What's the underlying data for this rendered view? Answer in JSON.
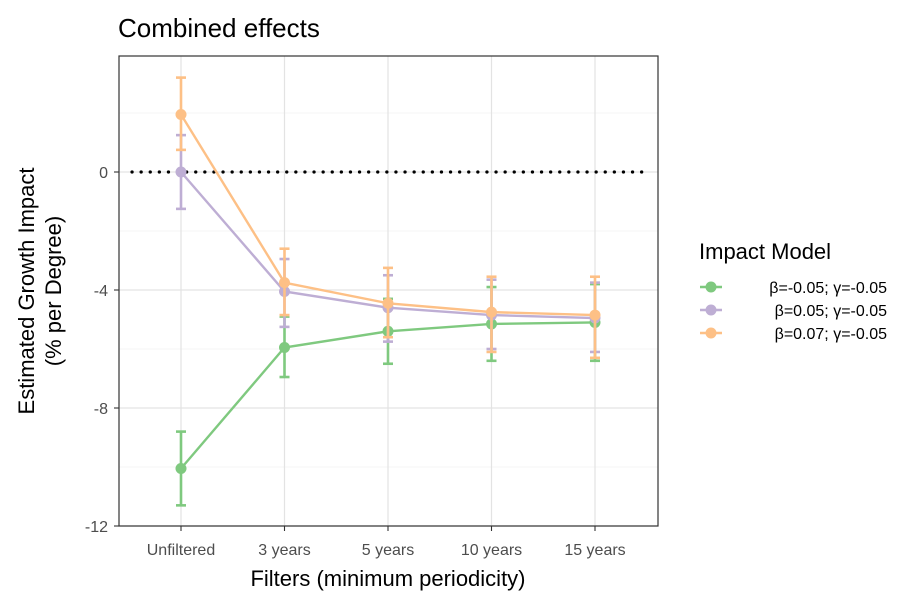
{
  "chart_data": {
    "type": "line",
    "title": "Combined effects",
    "xlabel": "Filters (minimum periodicity)",
    "ylabel_line1": "Estimated Growth Impact",
    "ylabel_line2": "(% per Degree)",
    "categories": [
      "Unfiltered",
      "3 years",
      "5 years",
      "10 years",
      "15 years"
    ],
    "ylim": [
      -12,
      4
    ],
    "yticks": [
      0,
      -4,
      -8,
      -12
    ],
    "ytick_labels": [
      "0",
      "-4",
      "-8",
      "-12"
    ],
    "grid": true,
    "reference_line": {
      "y": 0,
      "style": "dotted"
    },
    "legend": {
      "title": "Impact Model",
      "placement": "right"
    },
    "series": [
      {
        "name": "β=-0.05; γ=-0.05",
        "color": "#7fc97f",
        "values": [
          -10.05,
          -5.95,
          -5.4,
          -5.15,
          -5.1
        ],
        "lower": [
          -11.3,
          -6.95,
          -6.5,
          -6.4,
          -6.4
        ],
        "upper": [
          -8.8,
          -4.9,
          -4.3,
          -3.9,
          -3.8
        ]
      },
      {
        "name": "β=0.05; γ=-0.05",
        "color": "#beaed4",
        "values": [
          0.0,
          -4.05,
          -4.6,
          -4.85,
          -4.95
        ],
        "lower": [
          -1.25,
          -5.25,
          -5.75,
          -6.0,
          -6.1
        ],
        "upper": [
          1.25,
          -2.95,
          -3.5,
          -3.65,
          -3.75
        ]
      },
      {
        "name": "β=0.07; γ=-0.05",
        "color": "#fdc086",
        "values": [
          1.95,
          -3.75,
          -4.45,
          -4.75,
          -4.85
        ],
        "lower": [
          0.75,
          -4.85,
          -5.6,
          -6.1,
          -6.3
        ],
        "upper": [
          3.2,
          -2.6,
          -3.25,
          -3.55,
          -3.55
        ]
      }
    ]
  }
}
